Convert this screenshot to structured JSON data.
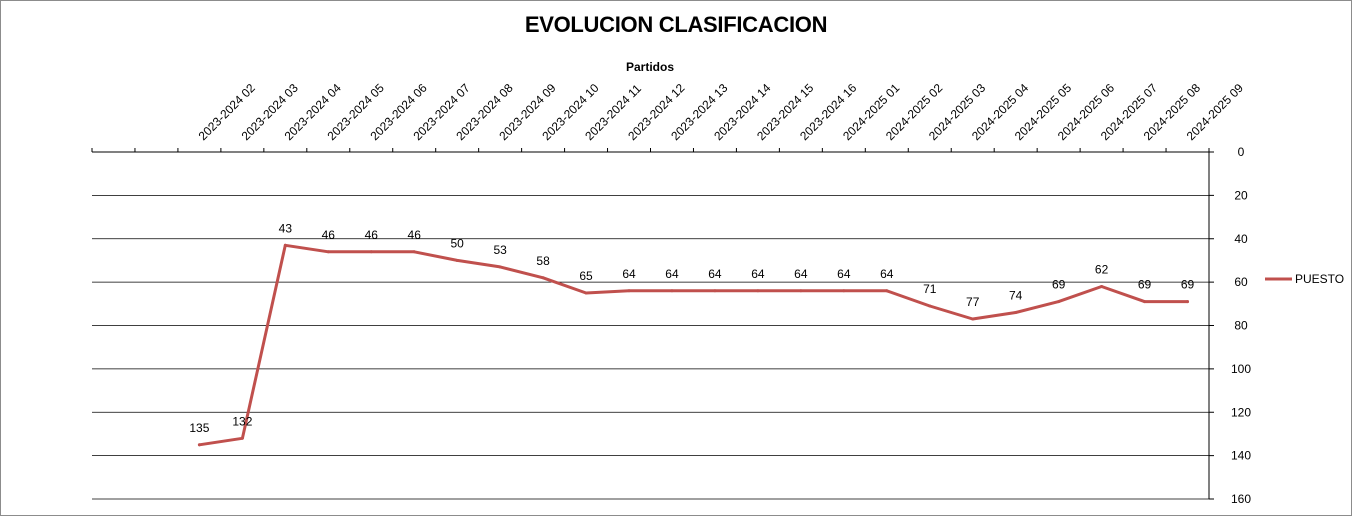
{
  "chart_data": {
    "type": "line",
    "title": "EVOLUCION CLASIFICACION",
    "xlabel": "Partidos",
    "ylabel": "",
    "categories": [
      "2023-2024 02",
      "2023-2024 03",
      "2023-2024 04",
      "2023-2024 05",
      "2023-2024 06",
      "2023-2024 07",
      "2023-2024 08",
      "2023-2024 09",
      "2023-2024 10",
      "2023-2024 11",
      "2023-2024 12",
      "2023-2024 13",
      "2023-2024 14",
      "2023-2024 15",
      "2023-2024 16",
      "2024-2025 01",
      "2024-2025 02",
      "2024-2025 03",
      "2024-2025 04",
      "2024-2025 05",
      "2024-2025 06",
      "2024-2025 07",
      "2024-2025 08",
      "2024-2025 09"
    ],
    "series": [
      {
        "name": "PUESTO",
        "color": "#c0504d",
        "values": [
          135,
          132,
          43,
          46,
          46,
          46,
          50,
          53,
          58,
          65,
          64,
          64,
          64,
          64,
          64,
          64,
          64,
          71,
          77,
          74,
          69,
          62,
          69,
          69
        ]
      }
    ],
    "yticks": [
      0,
      20,
      40,
      60,
      80,
      100,
      120,
      140,
      160
    ],
    "ylim": [
      0,
      160
    ],
    "y_reversed": true,
    "y_axis_side": "right",
    "x_axis_side": "top",
    "grid": true,
    "legend_position": "right"
  }
}
